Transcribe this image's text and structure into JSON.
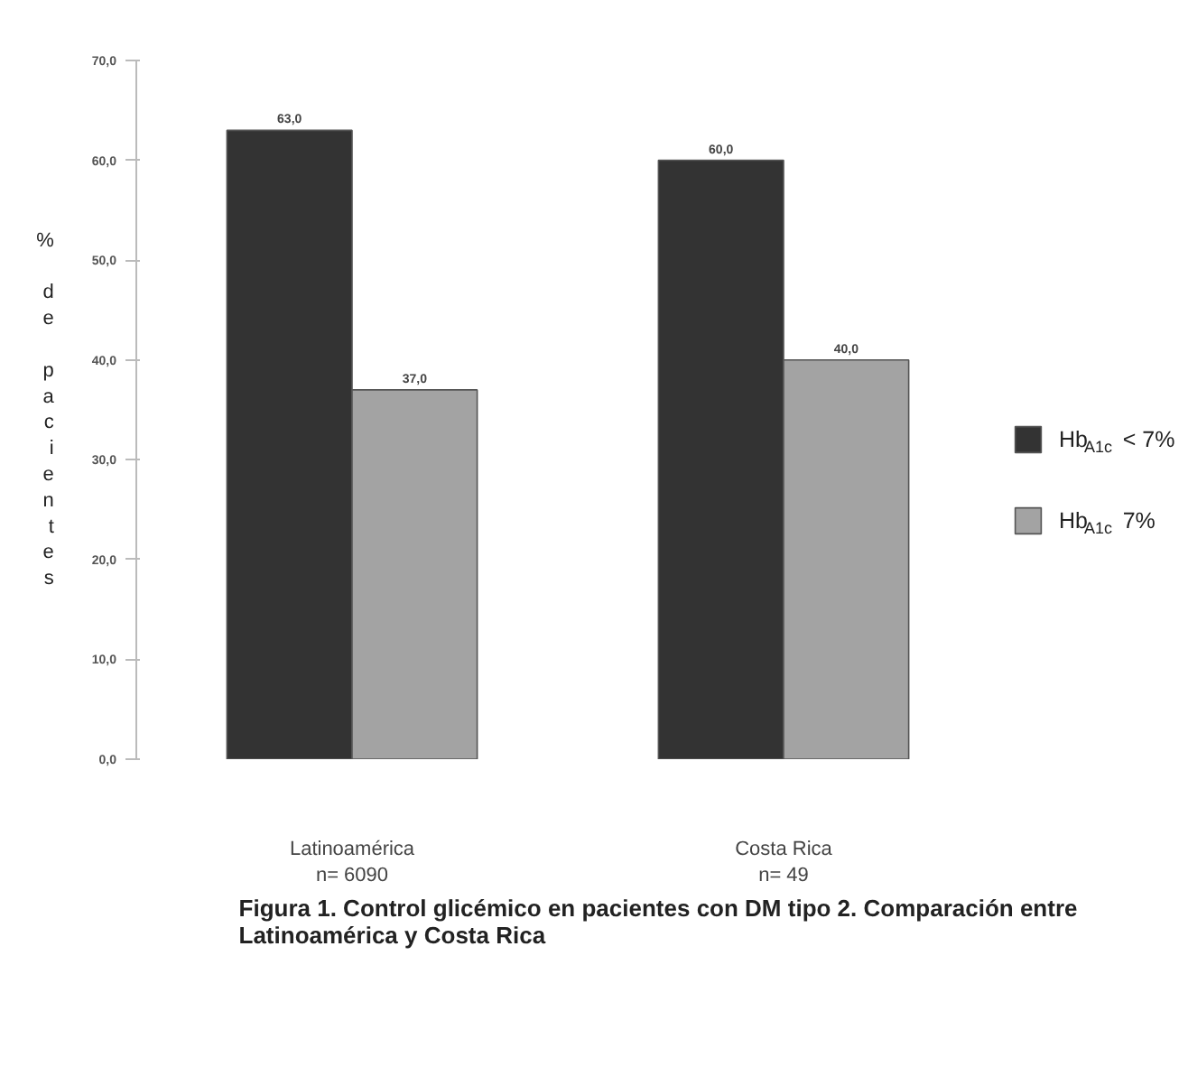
{
  "chart_data": {
    "type": "bar",
    "title": "Figura 1. Control glicémico en pacientes con DM tipo 2. Comparación entre Latinoamérica y Costa Rica",
    "ylabel": "% de pacientes",
    "categories": [
      "Latinoamérica\nn= 6090",
      "Costa Rica\nn= 49"
    ],
    "series": [
      {
        "name": "Hb$_{A1c}$ < 7%",
        "color": "#333333",
        "values": [
          63.0,
          60.0
        ],
        "value_labels": [
          "63,0",
          "60,0"
        ]
      },
      {
        "name": "Hb$_{A1c}$  7%",
        "color": "#a3a3a3",
        "values": [
          37.0,
          40.0
        ],
        "value_labels": [
          "37,0",
          "40,0"
        ]
      }
    ],
    "ylim": [
      0,
      70
    ],
    "yticks": [
      {
        "value": 0,
        "label": "0,0"
      },
      {
        "value": 10,
        "label": "10,0"
      },
      {
        "value": 20,
        "label": "20,0"
      },
      {
        "value": 30,
        "label": "30,0"
      },
      {
        "value": 40,
        "label": "40,0"
      },
      {
        "value": 50,
        "label": "50,0"
      },
      {
        "value": 60,
        "label": "60,0"
      },
      {
        "value": 70,
        "label": "70,0"
      }
    ],
    "grid": false,
    "legend": "right"
  }
}
